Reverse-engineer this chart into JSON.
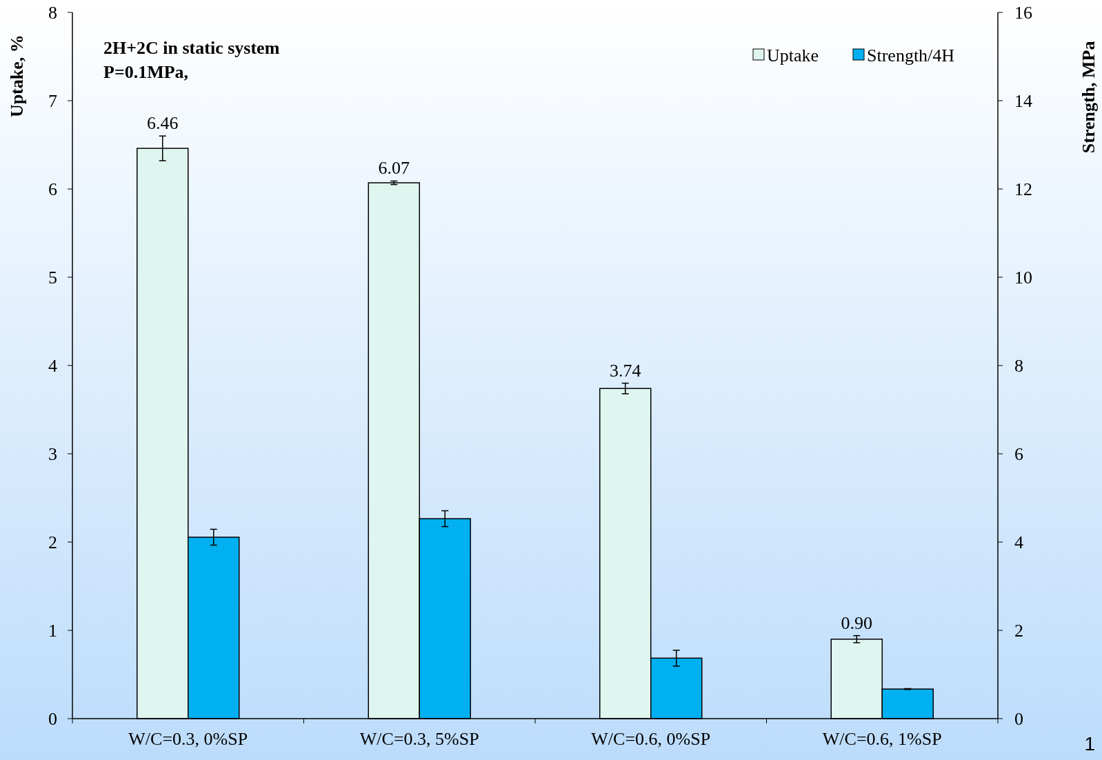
{
  "chart_data": {
    "type": "bar",
    "ylabel": "Uptake, %",
    "y2label": "Strength, MPa",
    "categories": [
      "W/C=0.3, 0%SP",
      "W/C=0.3, 5%SP",
      "W/C=0.6, 0%SP",
      "W/C=0.6, 1%SP"
    ],
    "series": [
      {
        "name": "Uptake",
        "color": "#dff5ef",
        "values": [
          6.46,
          6.07,
          3.74,
          0.9
        ],
        "errors": [
          0.14,
          0.02,
          0.06,
          0.04
        ],
        "value_labels": [
          "6.46",
          "6.07",
          "3.74",
          "0.90"
        ]
      },
      {
        "name": "Strength/4H",
        "color": "#00b0f0",
        "axis": "y2",
        "values": [
          4.11,
          4.53,
          1.37,
          0.67
        ],
        "errors": [
          0.18,
          0.18,
          0.18,
          0.01
        ]
      }
    ],
    "ylim": [
      0,
      8
    ],
    "yticks": [
      0,
      1,
      2,
      3,
      4,
      5,
      6,
      7,
      8
    ],
    "y2lim": [
      0,
      16
    ],
    "y2ticks": [
      0,
      2,
      4,
      6,
      8,
      10,
      12,
      14,
      16
    ],
    "annotations": [
      "2H+2C in static system",
      "P=0.1MPa,",
      "1"
    ],
    "legend": "top right",
    "grid": false
  }
}
